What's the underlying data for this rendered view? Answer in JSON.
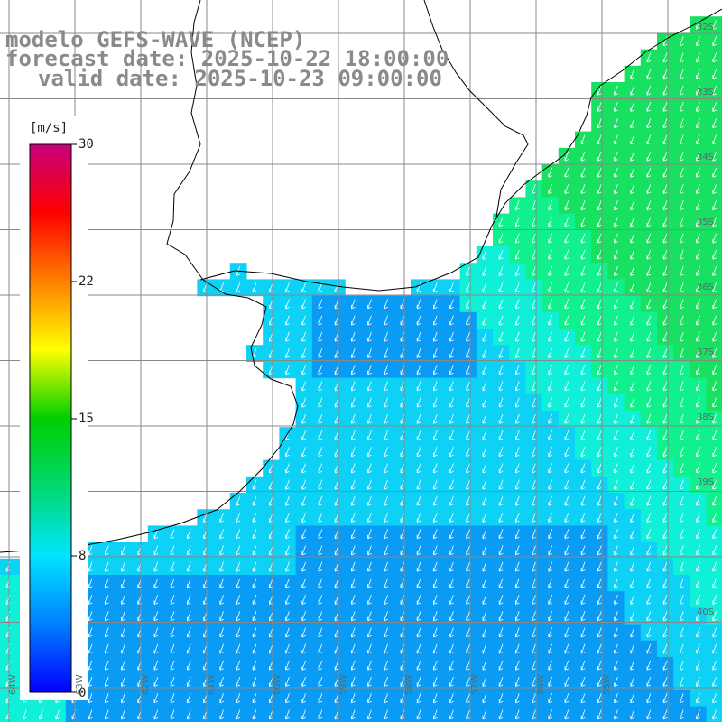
{
  "title": {
    "line1": "modelo GEFS-WAVE (NCEP)",
    "line2": "forecast date: 2025-10-22 18:00:00",
    "line3": "valid date: 2025-10-23 09:00:00"
  },
  "colorbar": {
    "unit": "[m/s]",
    "ticks": [
      "30",
      "22",
      "15",
      "8",
      "0"
    ],
    "min": 0,
    "max": 30,
    "colors": [
      "#0000ff",
      "#0080ff",
      "#00e5ff",
      "#00d870",
      "#00d000",
      "#ffff00",
      "#ff8000",
      "#ff0000",
      "#c8007a"
    ]
  },
  "map": {
    "lat_labels": [
      "32S",
      "33S",
      "34S",
      "35S",
      "36S",
      "37S",
      "38S",
      "39S",
      "40S"
    ],
    "lon_labels": [
      "64W",
      "63W",
      "62W",
      "61W",
      "60W",
      "59W",
      "58W",
      "57W",
      "56W",
      "55W"
    ],
    "land_color": "#ffffff",
    "grid_color": "#888888",
    "coast_color": "#000000",
    "arrow_color": "#ffffff",
    "field_colors": [
      "#0a6cf0",
      "#0a9cf5",
      "#0ed2f5",
      "#10f0d8",
      "#10f08c",
      "#18e060"
    ]
  }
}
